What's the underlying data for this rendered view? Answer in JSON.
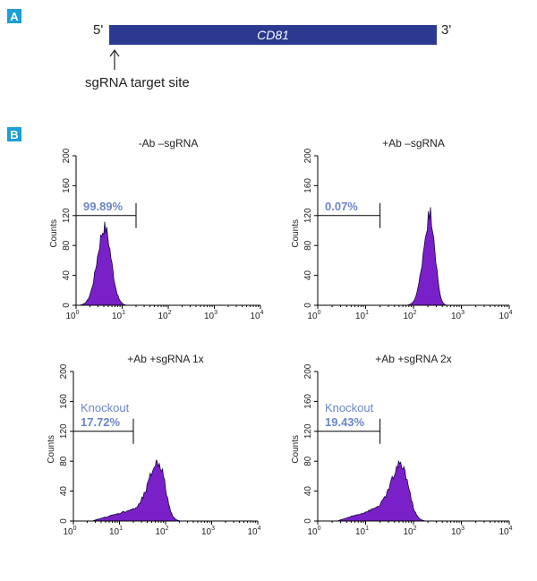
{
  "panel_a": {
    "badge": "A",
    "five_prime": "5'",
    "three_prime": "3'",
    "gene": "CD81",
    "target_label": "sgRNA target site",
    "gene_color": "#2b3990"
  },
  "panel_b": {
    "badge": "B"
  },
  "chart_data": [
    {
      "type": "area",
      "title": "-Ab –sgRNA",
      "ylabel": "Counts",
      "xlabel": "",
      "xscale": "log",
      "xlim": [
        1,
        10000
      ],
      "ylim": [
        0,
        200
      ],
      "yticks": [
        0,
        40,
        80,
        120,
        160,
        200
      ],
      "xticks": [
        "10",
        "10",
        "10",
        "10",
        "10"
      ],
      "xtick_exponents": [
        "0",
        "1",
        "2",
        "3",
        "4"
      ],
      "gate": {
        "x_max": 20,
        "y": 120,
        "label": "",
        "percent": "99.89%"
      },
      "peak": {
        "center_log": 0.62,
        "height": 104,
        "spread_left": 0.16,
        "spread_right": 0.14,
        "shoulder": 0
      },
      "fill_color": "#7a20c8"
    },
    {
      "type": "area",
      "title": "+Ab –sgRNA",
      "ylabel": "Counts",
      "xlabel": "",
      "xscale": "log",
      "xlim": [
        1,
        10000
      ],
      "ylim": [
        0,
        200
      ],
      "yticks": [
        0,
        40,
        80,
        120,
        160,
        200
      ],
      "xticks": [
        "10",
        "10",
        "10",
        "10",
        "10"
      ],
      "xtick_exponents": [
        "0",
        "1",
        "2",
        "3",
        "4"
      ],
      "gate": {
        "x_max": 20,
        "y": 120,
        "label": "",
        "percent": "0.07%"
      },
      "peak": {
        "center_log": 2.35,
        "height": 122,
        "spread_left": 0.14,
        "spread_right": 0.1,
        "shoulder": 0
      },
      "fill_color": "#7a20c8"
    },
    {
      "type": "area",
      "title": "+Ab +sgRNA 1x",
      "ylabel": "Counts",
      "xlabel": "",
      "xscale": "log",
      "xlim": [
        1,
        10000
      ],
      "ylim": [
        0,
        200
      ],
      "yticks": [
        0,
        40,
        80,
        120,
        160,
        200
      ],
      "xticks": [
        "10",
        "10",
        "10",
        "10",
        "10"
      ],
      "xtick_exponents": [
        "0",
        "1",
        "2",
        "3",
        "4"
      ],
      "gate": {
        "x_max": 20,
        "y": 120,
        "label": "Knockout",
        "percent": "17.72%"
      },
      "peak": {
        "center_log": 1.85,
        "height": 78,
        "spread_left": 0.2,
        "spread_right": 0.14,
        "shoulder": 14
      },
      "fill_color": "#7a20c8"
    },
    {
      "type": "area",
      "title": "+Ab +sgRNA 2x",
      "ylabel": "Counts",
      "xlabel": "",
      "xscale": "log",
      "xlim": [
        1,
        10000
      ],
      "ylim": [
        0,
        200
      ],
      "yticks": [
        0,
        40,
        80,
        120,
        160,
        200
      ],
      "xticks": [
        "10",
        "10",
        "10",
        "10",
        "10"
      ],
      "xtick_exponents": [
        "0",
        "1",
        "2",
        "3",
        "4"
      ],
      "gate": {
        "x_max": 20,
        "y": 120,
        "label": "Knockout",
        "percent": "19.43%"
      },
      "peak": {
        "center_log": 1.75,
        "height": 74,
        "spread_left": 0.2,
        "spread_right": 0.15,
        "shoulder": 16
      },
      "fill_color": "#7a20c8"
    }
  ]
}
